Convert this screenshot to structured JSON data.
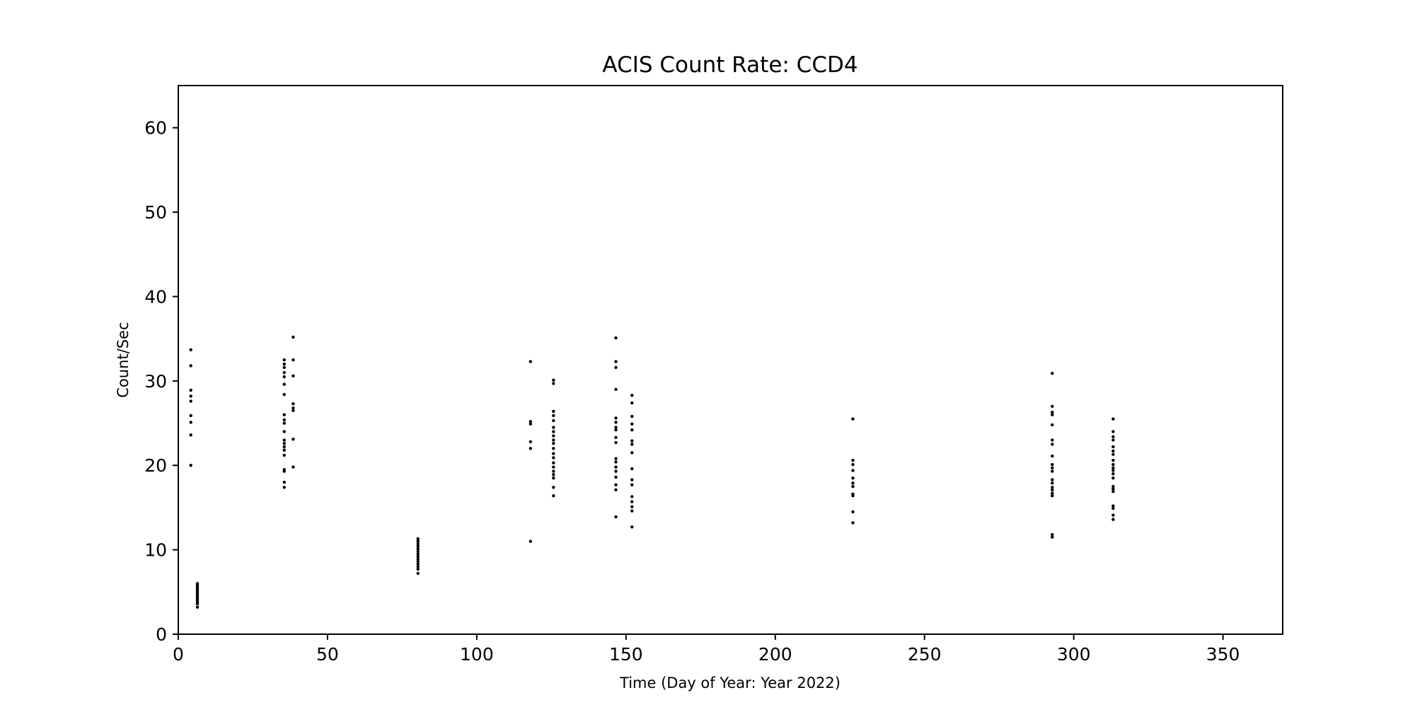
{
  "chart_data": {
    "type": "scatter",
    "title": "ACIS Count Rate: CCD4",
    "xlabel": "Time (Day of Year: Year 2022)",
    "ylabel": "Count/Sec",
    "xlim": [
      0,
      370
    ],
    "ylim": [
      0,
      65
    ],
    "xticks": [
      0,
      50,
      100,
      150,
      200,
      250,
      300,
      350
    ],
    "yticks": [
      0,
      10,
      20,
      30,
      40,
      50,
      60
    ],
    "grid": false,
    "marker_color": "#000000",
    "series": [
      {
        "points": [
          [
            4.2,
            33.7
          ],
          [
            4.2,
            31.8
          ],
          [
            4.2,
            28.9
          ],
          [
            4.2,
            28.2
          ],
          [
            4.2,
            27.6
          ],
          [
            4.2,
            25.9
          ],
          [
            4.2,
            25.1
          ],
          [
            4.2,
            23.6
          ],
          [
            4.2,
            20.0
          ],
          [
            6.4,
            6.0
          ],
          [
            6.4,
            5.8
          ],
          [
            6.4,
            5.6
          ],
          [
            6.4,
            5.4
          ],
          [
            6.4,
            5.2
          ],
          [
            6.4,
            5.0
          ],
          [
            6.4,
            4.8
          ],
          [
            6.4,
            4.6
          ],
          [
            6.4,
            4.4
          ],
          [
            6.4,
            4.2
          ],
          [
            6.4,
            4.0
          ],
          [
            6.4,
            3.8
          ],
          [
            6.4,
            3.6
          ],
          [
            6.4,
            3.2
          ],
          [
            35.5,
            32.5
          ],
          [
            35.5,
            32.0
          ],
          [
            35.5,
            31.6
          ],
          [
            35.5,
            31.0
          ],
          [
            35.5,
            30.5
          ],
          [
            35.5,
            29.6
          ],
          [
            35.5,
            28.4
          ],
          [
            35.5,
            26.0
          ],
          [
            35.5,
            25.4
          ],
          [
            35.5,
            25.0
          ],
          [
            35.5,
            24.0
          ],
          [
            35.5,
            23.0
          ],
          [
            35.5,
            22.6
          ],
          [
            35.5,
            22.2
          ],
          [
            35.5,
            21.8
          ],
          [
            35.5,
            21.2
          ],
          [
            35.5,
            19.5
          ],
          [
            35.5,
            19.3
          ],
          [
            35.5,
            18.0
          ],
          [
            35.5,
            17.4
          ],
          [
            38.5,
            35.2
          ],
          [
            38.5,
            32.5
          ],
          [
            38.5,
            30.6
          ],
          [
            38.5,
            27.3
          ],
          [
            38.5,
            26.8
          ],
          [
            38.5,
            26.5
          ],
          [
            38.5,
            23.1
          ],
          [
            38.5,
            19.8
          ],
          [
            80.3,
            11.3
          ],
          [
            80.3,
            11.0
          ],
          [
            80.3,
            10.7
          ],
          [
            80.3,
            10.4
          ],
          [
            80.3,
            10.1
          ],
          [
            80.3,
            9.8
          ],
          [
            80.3,
            9.5
          ],
          [
            80.3,
            9.2
          ],
          [
            80.3,
            8.9
          ],
          [
            80.3,
            8.6
          ],
          [
            80.3,
            8.3
          ],
          [
            80.3,
            8.0
          ],
          [
            80.3,
            7.7
          ],
          [
            80.3,
            7.2
          ],
          [
            118.0,
            32.3
          ],
          [
            118.0,
            25.2
          ],
          [
            118.0,
            24.9
          ],
          [
            118.0,
            22.8
          ],
          [
            118.0,
            22.0
          ],
          [
            118.0,
            11.0
          ],
          [
            125.7,
            30.1
          ],
          [
            125.7,
            29.7
          ],
          [
            125.7,
            26.4
          ],
          [
            125.7,
            25.9
          ],
          [
            125.7,
            25.3
          ],
          [
            125.7,
            24.5
          ],
          [
            125.7,
            24.0
          ],
          [
            125.7,
            23.5
          ],
          [
            125.7,
            23.0
          ],
          [
            125.7,
            22.6
          ],
          [
            125.7,
            22.0
          ],
          [
            125.7,
            21.4
          ],
          [
            125.7,
            20.9
          ],
          [
            125.7,
            20.3
          ],
          [
            125.7,
            19.8
          ],
          [
            125.7,
            19.3
          ],
          [
            125.7,
            18.9
          ],
          [
            125.7,
            18.5
          ],
          [
            125.7,
            17.4
          ],
          [
            125.7,
            16.4
          ],
          [
            146.6,
            35.1
          ],
          [
            146.6,
            32.3
          ],
          [
            146.6,
            31.6
          ],
          [
            146.6,
            29.0
          ],
          [
            146.6,
            25.6
          ],
          [
            146.6,
            25.1
          ],
          [
            146.6,
            24.5
          ],
          [
            146.6,
            24.2
          ],
          [
            146.6,
            23.3
          ],
          [
            146.6,
            22.7
          ],
          [
            146.6,
            20.8
          ],
          [
            146.6,
            20.4
          ],
          [
            146.6,
            19.8
          ],
          [
            146.6,
            19.3
          ],
          [
            146.6,
            18.6
          ],
          [
            146.6,
            17.7
          ],
          [
            146.6,
            17.1
          ],
          [
            146.6,
            13.9
          ],
          [
            152.0,
            28.3
          ],
          [
            152.0,
            27.4
          ],
          [
            152.0,
            25.8
          ],
          [
            152.0,
            24.9
          ],
          [
            152.0,
            24.2
          ],
          [
            152.0,
            22.9
          ],
          [
            152.0,
            22.5
          ],
          [
            152.0,
            21.5
          ],
          [
            152.0,
            19.6
          ],
          [
            152.0,
            18.3
          ],
          [
            152.0,
            17.7
          ],
          [
            152.0,
            16.3
          ],
          [
            152.0,
            15.7
          ],
          [
            152.0,
            15.1
          ],
          [
            152.0,
            14.6
          ],
          [
            152.0,
            12.7
          ],
          [
            226.0,
            25.5
          ],
          [
            226.0,
            20.6
          ],
          [
            226.0,
            20.1
          ],
          [
            226.0,
            19.4
          ],
          [
            226.0,
            18.5
          ],
          [
            226.0,
            17.9
          ],
          [
            226.0,
            17.5
          ],
          [
            226.0,
            16.6
          ],
          [
            226.0,
            16.4
          ],
          [
            226.0,
            14.5
          ],
          [
            226.0,
            13.2
          ],
          [
            292.8,
            30.9
          ],
          [
            292.8,
            27.0
          ],
          [
            292.8,
            26.3
          ],
          [
            292.8,
            26.0
          ],
          [
            292.8,
            24.8
          ],
          [
            292.8,
            23.0
          ],
          [
            292.8,
            22.5
          ],
          [
            292.8,
            21.1
          ],
          [
            292.8,
            20.1
          ],
          [
            292.8,
            19.7
          ],
          [
            292.8,
            19.3
          ],
          [
            292.8,
            18.3
          ],
          [
            292.8,
            17.9
          ],
          [
            292.8,
            17.4
          ],
          [
            292.8,
            17.1
          ],
          [
            292.8,
            16.7
          ],
          [
            292.8,
            16.4
          ],
          [
            292.8,
            11.8
          ],
          [
            292.8,
            11.5
          ],
          [
            313.2,
            25.5
          ],
          [
            313.2,
            24.0
          ],
          [
            313.2,
            23.4
          ],
          [
            313.2,
            23.0
          ],
          [
            313.2,
            22.2
          ],
          [
            313.2,
            21.7
          ],
          [
            313.2,
            21.3
          ],
          [
            313.2,
            20.6
          ],
          [
            313.2,
            20.1
          ],
          [
            313.2,
            19.7
          ],
          [
            313.2,
            19.4
          ],
          [
            313.2,
            19.0
          ],
          [
            313.2,
            18.5
          ],
          [
            313.2,
            17.5
          ],
          [
            313.2,
            17.2
          ],
          [
            313.2,
            16.9
          ],
          [
            313.2,
            15.2
          ],
          [
            313.2,
            14.9
          ],
          [
            313.2,
            14.1
          ],
          [
            313.2,
            13.6
          ]
        ]
      }
    ]
  }
}
